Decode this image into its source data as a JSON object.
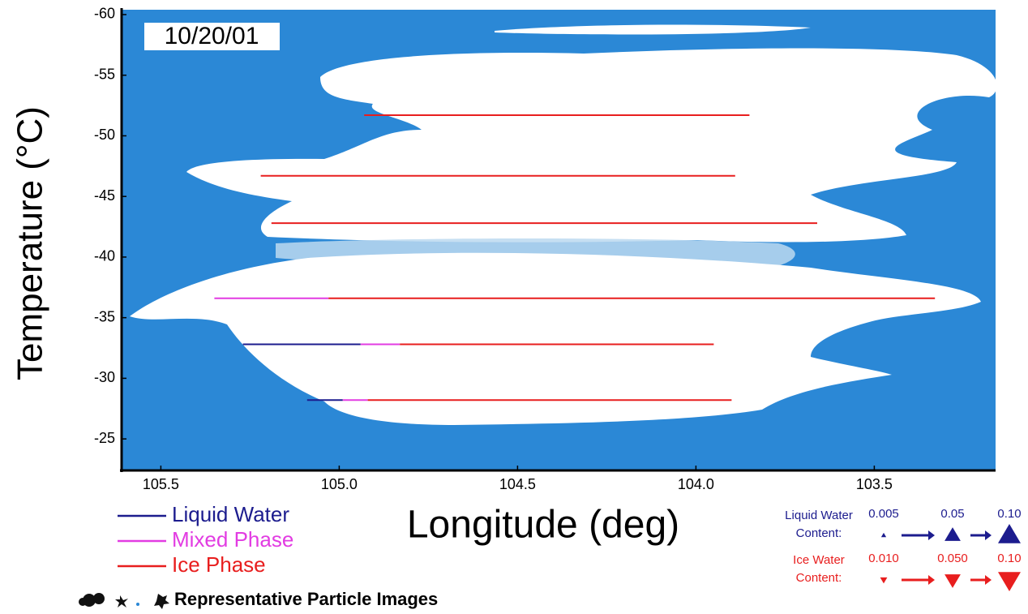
{
  "chart_data": {
    "type": "flight-legs",
    "title": "10/20/01",
    "x_label": "Longitude (deg)",
    "y_label": "Temperature (°C)",
    "xlim": [
      105.61,
      103.16
    ],
    "ylim": [
      -60.4,
      -22.4
    ],
    "xticks": [
      105.5,
      {
        "value": 105,
        "label": "105.0"
      },
      104.5,
      {
        "value": 104,
        "label": "104.0"
      },
      103.5
    ],
    "yticks": [
      -60,
      -55,
      -50,
      -45,
      -40,
      -35,
      -30,
      -25
    ],
    "phases": [
      {
        "name": "Liquid Water",
        "color": "#1c1c8e"
      },
      {
        "name": "Mixed Phase",
        "color": "#e23ce2"
      },
      {
        "name": "Ice Phase",
        "color": "#e81e1e"
      }
    ],
    "legs": [
      {
        "temperature": -51.7,
        "segments": [
          {
            "phase": 2,
            "from": 104.93,
            "to": 103.85
          }
        ]
      },
      {
        "temperature": -46.7,
        "segments": [
          {
            "phase": 2,
            "from": 105.22,
            "to": 103.89
          }
        ]
      },
      {
        "temperature": -42.8,
        "segments": [
          {
            "phase": 2,
            "from": 105.19,
            "to": 103.66
          }
        ]
      },
      {
        "temperature": -36.6,
        "segments": [
          {
            "phase": 1,
            "from": 105.35,
            "to": 105.03
          },
          {
            "phase": 2,
            "from": 105.03,
            "to": 103.33
          }
        ]
      },
      {
        "temperature": -32.8,
        "segments": [
          {
            "phase": 0,
            "from": 105.27,
            "to": 104.94
          },
          {
            "phase": 1,
            "from": 104.94,
            "to": 104.83
          },
          {
            "phase": 2,
            "from": 104.83,
            "to": 103.95
          }
        ]
      },
      {
        "temperature": -28.2,
        "segments": [
          {
            "phase": 0,
            "from": 105.09,
            "to": 104.99
          },
          {
            "phase": 1,
            "from": 104.99,
            "to": 104.92
          },
          {
            "phase": 2,
            "from": 104.92,
            "to": 103.9
          }
        ]
      }
    ],
    "particle_caption": "Representative Particle Images",
    "size_legends": [
      {
        "label": "Liquid Water",
        "label2": "Content:",
        "color": "#1c1c8e",
        "direction": "up",
        "values": [
          0.005,
          0.05,
          {
            "value": 0.1,
            "label": "0.10"
          }
        ]
      },
      {
        "label": "Ice Water",
        "label2": "Content:",
        "color": "#e81e1e",
        "direction": "down",
        "values": [
          {
            "value": 0.01,
            "label": "0.010"
          },
          {
            "value": 0.05,
            "label": "0.050"
          },
          {
            "value": 0.1,
            "label": "0.10"
          }
        ]
      }
    ]
  }
}
